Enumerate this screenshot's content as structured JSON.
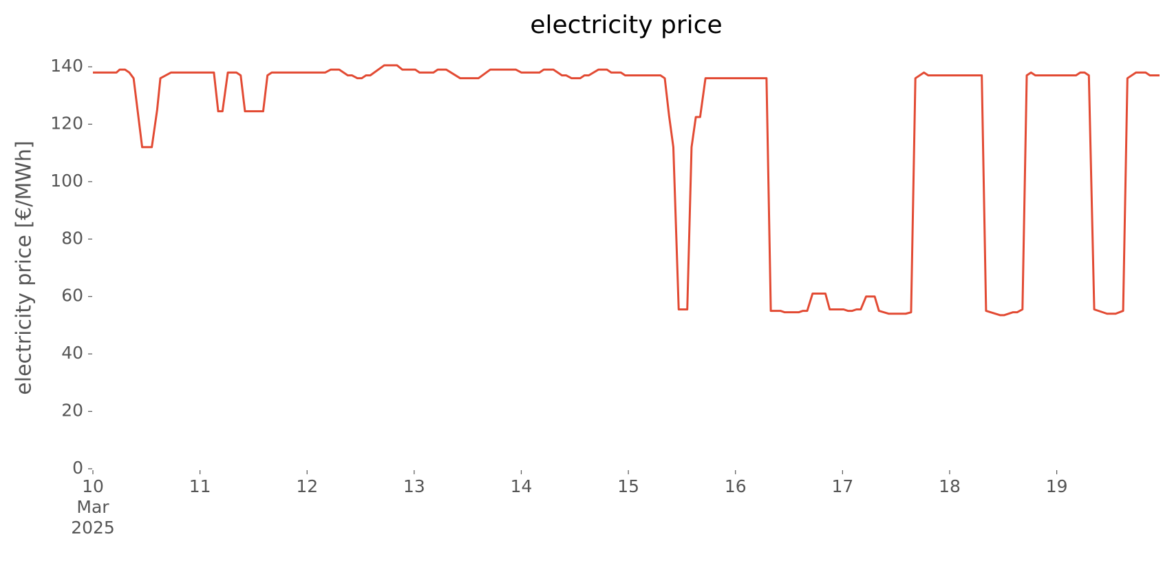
{
  "chart_data": {
    "type": "line",
    "title": "electricity price",
    "ylabel": "electricity price [€/MWh]",
    "x": [
      10.0,
      10.22,
      10.25,
      10.3,
      10.34,
      10.38,
      10.46,
      10.55,
      10.6,
      10.63,
      10.73,
      11.13,
      11.17,
      11.21,
      11.26,
      11.34,
      11.38,
      11.42,
      11.59,
      11.63,
      11.67,
      12.17,
      12.22,
      12.3,
      12.38,
      12.42,
      12.47,
      12.51,
      12.55,
      12.59,
      12.72,
      12.84,
      12.89,
      13.01,
      13.05,
      13.18,
      13.22,
      13.3,
      13.43,
      13.6,
      13.71,
      13.95,
      14.0,
      14.17,
      14.21,
      14.3,
      14.38,
      14.42,
      14.47,
      14.55,
      14.59,
      14.63,
      14.72,
      14.8,
      14.84,
      14.93,
      14.97,
      15.3,
      15.34,
      15.38,
      15.42,
      15.47,
      15.55,
      15.59,
      15.63,
      15.67,
      15.72,
      16.29,
      16.33,
      16.42,
      16.46,
      16.59,
      16.63,
      16.67,
      16.72,
      16.84,
      16.88,
      17.01,
      17.05,
      17.09,
      17.13,
      17.17,
      17.22,
      17.3,
      17.34,
      17.43,
      17.59,
      17.64,
      17.68,
      17.76,
      17.8,
      18.3,
      18.34,
      18.47,
      18.51,
      18.59,
      18.63,
      18.68,
      18.72,
      18.76,
      18.8,
      19.18,
      19.22,
      19.26,
      19.3,
      19.35,
      19.47,
      19.55,
      19.62,
      19.66,
      19.74,
      19.83,
      19.87,
      19.96
    ],
    "series": [
      {
        "name": "electricity price",
        "color": "#e24a33",
        "values": [
          138,
          138,
          139,
          139,
          138,
          136,
          112,
          112,
          125,
          136,
          138,
          138,
          124.5,
          124.5,
          138,
          138,
          137,
          124.5,
          124.5,
          137,
          138,
          138,
          139,
          139,
          137,
          137,
          136,
          136,
          137,
          137,
          140.5,
          140.5,
          139,
          139,
          138,
          138,
          139,
          139,
          136,
          136,
          139,
          139,
          138,
          138,
          139,
          139,
          137,
          137,
          136,
          136,
          137,
          137,
          139,
          139,
          138,
          138,
          137,
          137,
          136,
          123,
          112,
          55.5,
          55.5,
          112,
          122.5,
          122.5,
          136,
          136,
          55,
          55,
          54.5,
          54.5,
          55,
          55,
          61,
          61,
          55.5,
          55.5,
          55,
          55,
          55.5,
          55.5,
          60,
          60,
          55,
          54,
          54,
          54.5,
          136,
          138,
          137,
          137,
          55,
          53.5,
          53.5,
          54.5,
          54.5,
          55.5,
          137,
          138,
          137,
          137,
          138,
          138,
          137,
          55.5,
          54,
          54,
          55,
          136,
          138,
          138,
          137,
          137
        ]
      }
    ],
    "xlim": [
      10,
      19.96
    ],
    "xticks": [
      {
        "value": 10,
        "label": "10\nMar\n2025"
      },
      11,
      12,
      13,
      14,
      15,
      16,
      17,
      18,
      19
    ],
    "ylim": [
      0,
      140
    ],
    "yticks": [
      0,
      20,
      40,
      60,
      80,
      100,
      120,
      140
    ],
    "grid": false
  }
}
